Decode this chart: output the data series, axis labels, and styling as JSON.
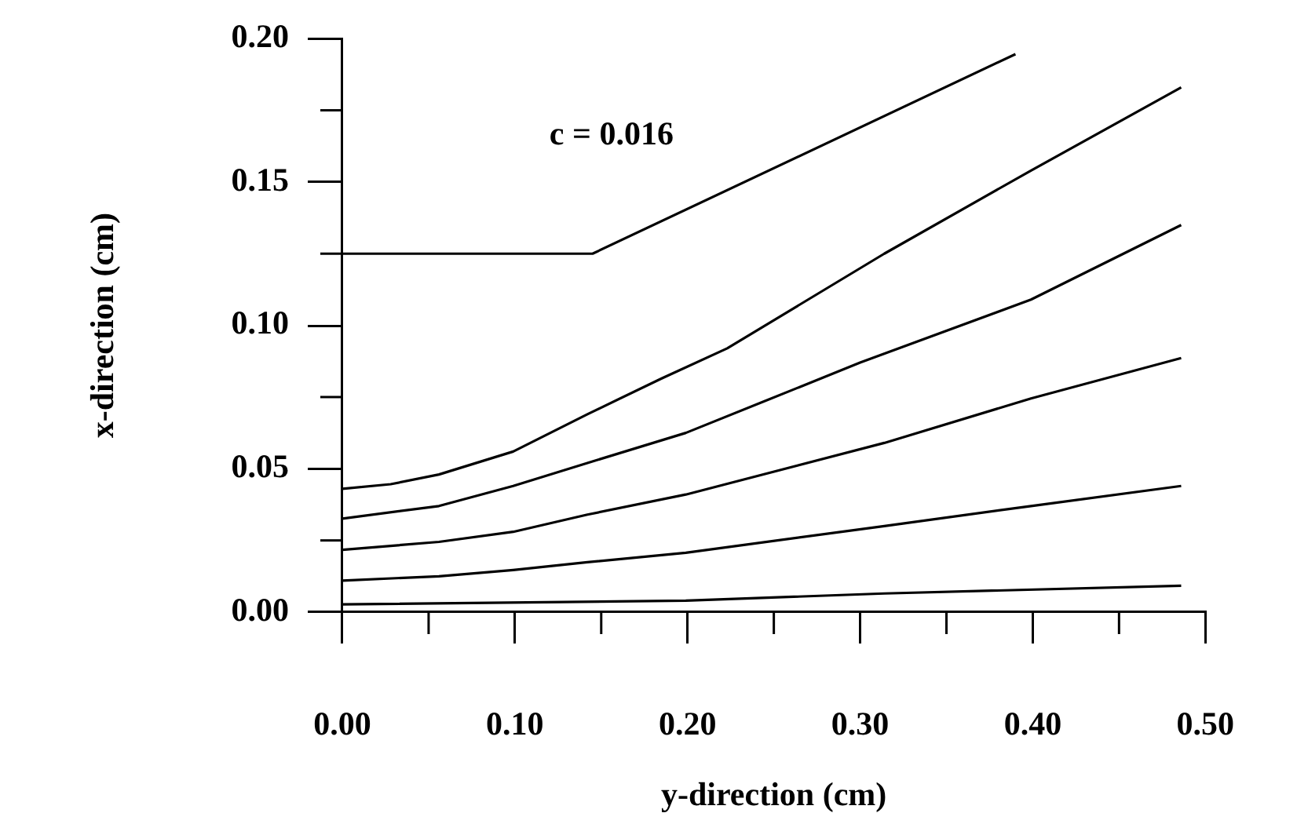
{
  "chart_data": {
    "type": "line",
    "xlabel": "y-direction (cm)",
    "ylabel": "x-direction (cm)",
    "xlim": [
      0,
      0.5
    ],
    "ylim": [
      0,
      0.2
    ],
    "xticks": [
      {
        "value": 0,
        "label": "0.00"
      },
      {
        "value": 0.05,
        "label": null
      },
      {
        "value": 0.1,
        "label": "0.10"
      },
      {
        "value": 0.15,
        "label": null
      },
      {
        "value": 0.2,
        "label": "0.20"
      },
      {
        "value": 0.25,
        "label": null
      },
      {
        "value": 0.3,
        "label": "0.30"
      },
      {
        "value": 0.35,
        "label": null
      },
      {
        "value": 0.4,
        "label": "0.40"
      },
      {
        "value": 0.45,
        "label": null
      },
      {
        "value": 0.5,
        "label": "0.50"
      }
    ],
    "yticks": [
      {
        "value": 0,
        "label": "0.00"
      },
      {
        "value": 0.025,
        "label": null
      },
      {
        "value": 0.05,
        "label": "0.05"
      },
      {
        "value": 0.075,
        "label": null
      },
      {
        "value": 0.1,
        "label": "0.10"
      },
      {
        "value": 0.125,
        "label": null
      },
      {
        "value": 0.15,
        "label": "0.15"
      },
      {
        "value": 0.175,
        "label": null
      },
      {
        "value": 0.2,
        "label": "0.20"
      }
    ],
    "grid": false,
    "legend": false,
    "marker": "none",
    "line_style": "solid",
    "annotations": [
      "c = 0.016"
    ],
    "series": [
      {
        "color": "#000000",
        "x": [
          0,
          0.145,
          0.39
        ],
        "values": [
          0.125,
          0.125,
          0.1946
        ]
      },
      {
        "color": "#000000",
        "x": [
          0,
          0.028,
          0.056,
          0.099,
          0.142,
          0.185,
          0.223,
          0.314,
          0.399,
          0.486
        ],
        "values": [
          0.043,
          0.0446,
          0.048,
          0.056,
          0.069,
          0.0815,
          0.092,
          0.125,
          0.154,
          0.183
        ]
      },
      {
        "color": "#000000",
        "x": [
          0,
          0.056,
          0.099,
          0.142,
          0.199,
          0.3,
          0.399,
          0.486
        ],
        "values": [
          0.0326,
          0.037,
          0.044,
          0.052,
          0.0625,
          0.087,
          0.109,
          0.135
        ]
      },
      {
        "color": "#000000",
        "x": [
          0,
          0.056,
          0.099,
          0.142,
          0.199,
          0.314,
          0.399,
          0.486
        ],
        "values": [
          0.0217,
          0.0245,
          0.028,
          0.034,
          0.041,
          0.059,
          0.0745,
          0.0886
        ]
      },
      {
        "color": "#000000",
        "x": [
          0,
          0.056,
          0.099,
          0.142,
          0.199,
          0.314,
          0.399,
          0.486
        ],
        "values": [
          0.011,
          0.0125,
          0.0147,
          0.0174,
          0.0207,
          0.03,
          0.037,
          0.044
        ]
      },
      {
        "color": "#000000",
        "x": [
          0,
          0.199,
          0.314,
          0.486
        ],
        "values": [
          0.0027,
          0.004,
          0.0065,
          0.0092
        ]
      }
    ]
  }
}
